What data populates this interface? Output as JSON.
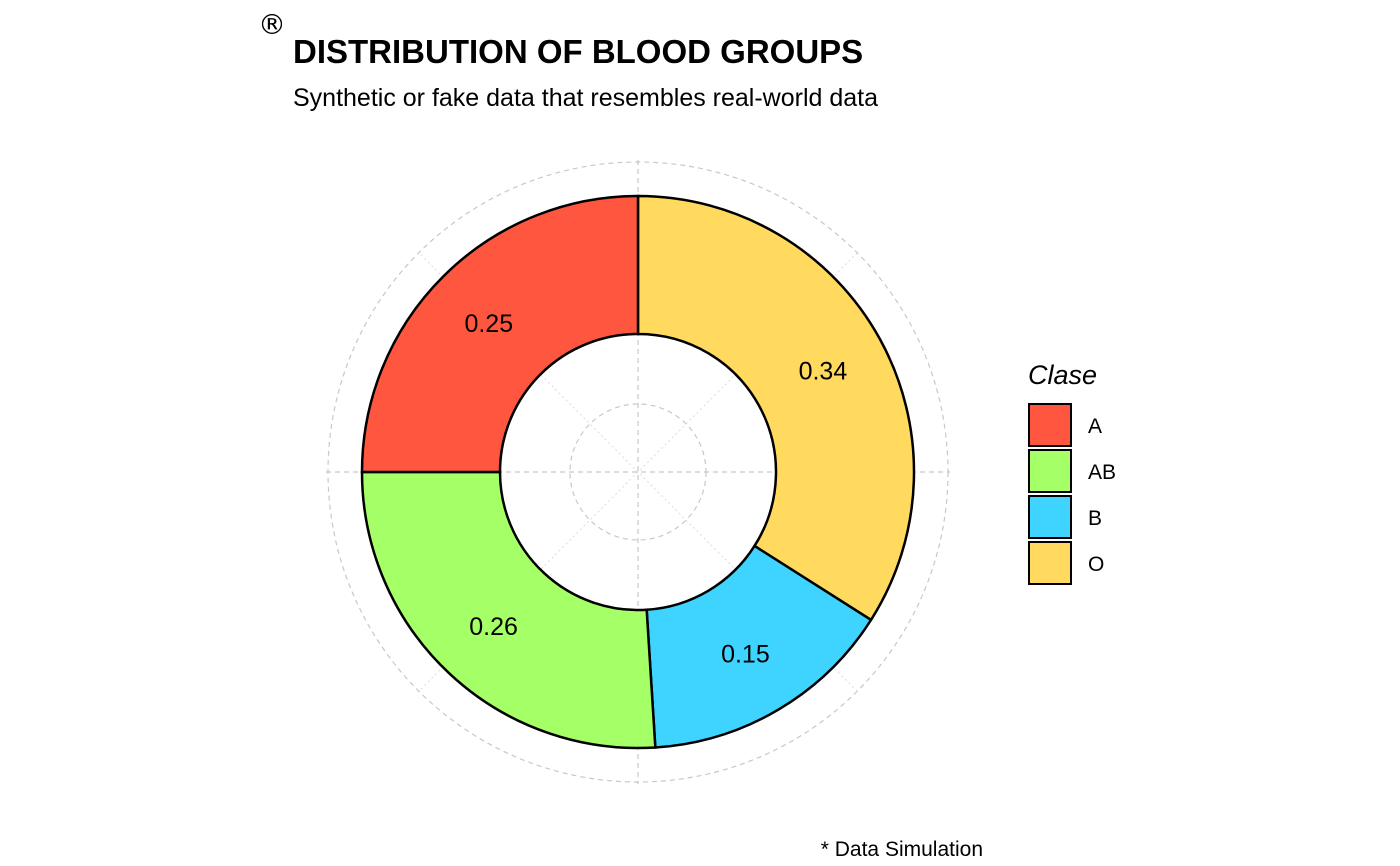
{
  "chart_data": {
    "type": "pie",
    "title": "DISTRIBUTION OF BLOOD GROUPS",
    "subtitle": "Synthetic or fake data that resembles real-world data",
    "caption": "* Data Simulation",
    "logo_mark": "®",
    "legend_title": "Clase",
    "legend_position": "right",
    "donut": true,
    "grid": true,
    "categories": [
      "A",
      "AB",
      "B",
      "O"
    ],
    "values": [
      0.25,
      0.26,
      0.15,
      0.34
    ],
    "labels": [
      "0.25",
      "0.26",
      "0.15",
      "0.34"
    ],
    "colors": [
      "#FF5640",
      "#A5FF66",
      "#3FD3FF",
      "#FFDA5F"
    ]
  }
}
